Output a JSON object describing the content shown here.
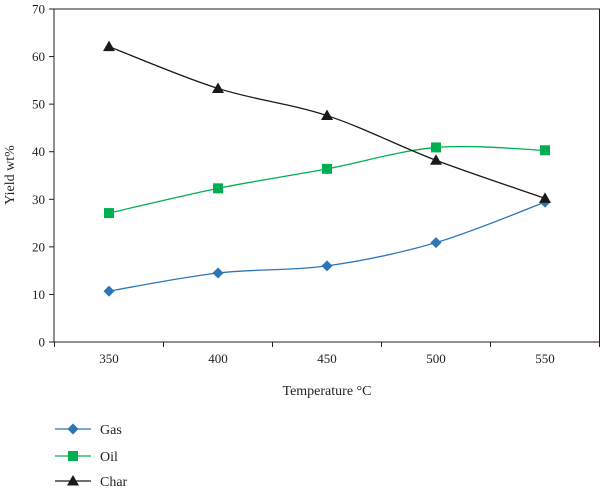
{
  "chart_data": {
    "type": "line",
    "xlabel": "Temperature °C",
    "ylabel": "Yield wt%",
    "x": [
      350,
      400,
      450,
      500,
      550
    ],
    "x_ticks": [
      "350",
      "400",
      "450",
      "500",
      "550"
    ],
    "ylim": [
      0,
      70
    ],
    "y_ticks": [
      0,
      10,
      20,
      30,
      40,
      50,
      60,
      70
    ],
    "grid": false,
    "smooth": true,
    "legend_position": "bottom-left",
    "series": [
      {
        "name": "Gas",
        "color": "#2e75b6",
        "marker": "diamond",
        "values": [
          10.7,
          14.5,
          16.0,
          20.9,
          29.4
        ]
      },
      {
        "name": "Oil",
        "color": "#00b050",
        "marker": "square",
        "values": [
          27.1,
          32.3,
          36.4,
          40.9,
          40.3
        ]
      },
      {
        "name": "Char",
        "color": "#1a1a1a",
        "marker": "triangle",
        "values": [
          62.1,
          53.3,
          47.6,
          38.2,
          30.2
        ]
      }
    ]
  }
}
